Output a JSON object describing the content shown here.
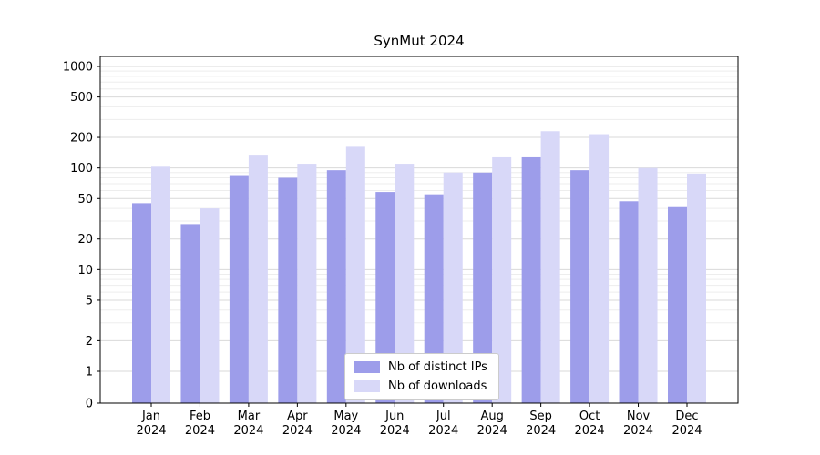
{
  "chart_data": {
    "type": "bar",
    "title": "SynMut 2024",
    "yscale": "symlog",
    "grid": "horizontal",
    "legend_position": "lower center",
    "ylim": [
      0,
      1250
    ],
    "y_ticks": [
      0,
      1,
      2,
      5,
      10,
      20,
      50,
      100,
      200,
      500,
      1000
    ],
    "y_minor_ticks": [
      3,
      4,
      6,
      7,
      8,
      9,
      30,
      40,
      60,
      70,
      80,
      90,
      300,
      400,
      600,
      700,
      800,
      900
    ],
    "categories": [
      "Jan 2024",
      "Feb 2024",
      "Mar 2024",
      "Apr 2024",
      "May 2024",
      "Jun 2024",
      "Jul 2024",
      "Aug 2024",
      "Sep 2024",
      "Oct 2024",
      "Nov 2024",
      "Dec 2024"
    ],
    "series": [
      {
        "name": "Nb of distinct IPs",
        "color": "#9d9dea",
        "values": [
          45,
          28,
          85,
          80,
          95,
          58,
          55,
          90,
          130,
          95,
          47,
          42
        ]
      },
      {
        "name": "Nb of downloads",
        "color": "#d8d8f8",
        "values": [
          105,
          40,
          135,
          110,
          165,
          110,
          90,
          130,
          230,
          215,
          100,
          88
        ]
      }
    ],
    "colors": {
      "major_grid": "#d9d9d9",
      "minor_grid": "#ededed",
      "axis": "#000000",
      "background": "#ffffff"
    }
  }
}
